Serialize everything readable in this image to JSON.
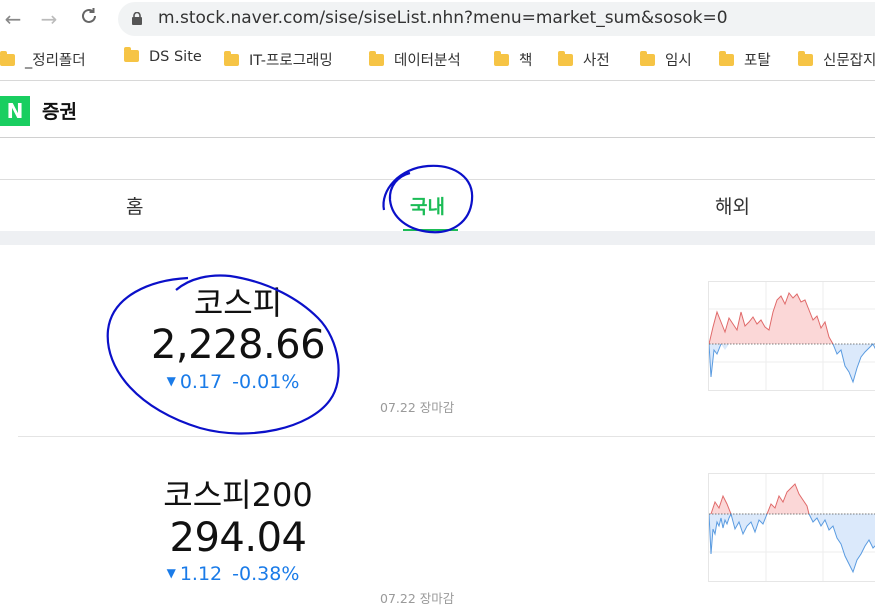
{
  "browser": {
    "url": "m.stock.naver.com/sise/siseList.nhn?menu=market_sum&sosok=0",
    "bookmarks": [
      {
        "label": "_정리폴더"
      },
      {
        "label": "DS Site"
      },
      {
        "label": "IT-프로그래밍"
      },
      {
        "label": "데이터분석"
      },
      {
        "label": "책"
      },
      {
        "label": "사전"
      },
      {
        "label": "임시"
      },
      {
        "label": "포탈"
      },
      {
        "label": "신문잡지"
      }
    ]
  },
  "header": {
    "logo": "N",
    "title": "증권"
  },
  "tabs": [
    {
      "label": "홈"
    },
    {
      "label": "국내"
    },
    {
      "label": "해외"
    }
  ],
  "indices": [
    {
      "name": "코스피",
      "value": "2,228.66",
      "change": "0.17",
      "change_pct": "-0.01%",
      "time": "07.22 장마감"
    },
    {
      "name": "코스피200",
      "value": "294.04",
      "change": "1.12",
      "change_pct": "-0.38%",
      "time": "07.22 장마감"
    }
  ],
  "colors": {
    "accent": "#1bbc56",
    "down": "#1a7be8",
    "up": "#e05a5a",
    "annotation": "#0b10c9"
  }
}
